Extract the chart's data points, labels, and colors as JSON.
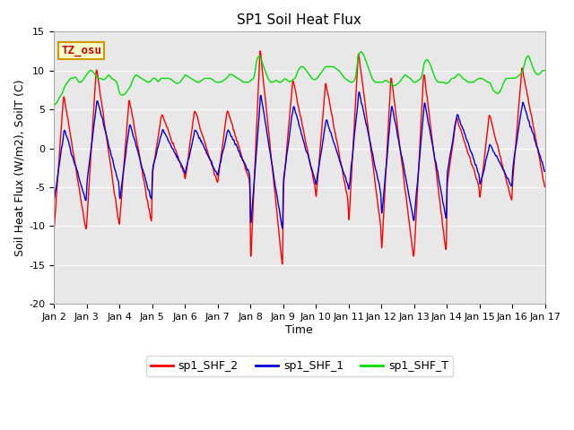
{
  "title": "SP1 Soil Heat Flux",
  "xlabel": "Time",
  "ylabel": "Soil Heat Flux (W/m2), SoilT (C)",
  "ylim": [
    -20,
    15
  ],
  "yticks": [
    -20,
    -15,
    -10,
    -5,
    0,
    5,
    10,
    15
  ],
  "legend_labels": [
    "sp1_SHF_2",
    "sp1_SHF_1",
    "sp1_SHF_T"
  ],
  "line_colors": [
    "#ff0000",
    "#0000dd",
    "#00dd00"
  ],
  "tz_label": "TZ_osu",
  "tz_bg": "#ffffcc",
  "tz_border": "#cc9900",
  "tz_text_color": "#cc0000",
  "plot_bg": "#e8e8e8",
  "fig_bg": "#ffffff",
  "grid_color": "#ffffff",
  "xtick_labels": [
    "Jan 2",
    "Jan 3",
    "Jan 4",
    "Jan 5",
    "Jan 6",
    "Jan 7",
    "Jan 8",
    "Jan 9",
    "Jan 10",
    "Jan 11",
    "Jan 12",
    "Jan 13",
    "Jan 14",
    "Jan 15",
    "Jan 16",
    "Jan 17"
  ],
  "title_fontsize": 11,
  "axis_label_fontsize": 9,
  "tick_fontsize": 8,
  "legend_fontsize": 9
}
